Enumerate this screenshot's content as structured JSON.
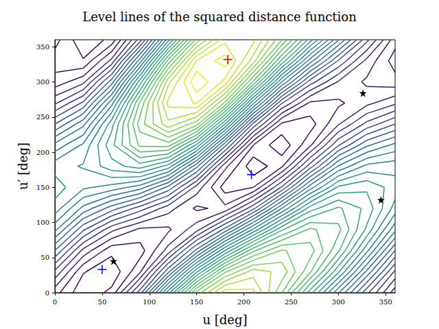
{
  "chart_data": {
    "type": "contour",
    "title": "Level lines of the squared distance function",
    "x_label": "u [deg]",
    "y_label": "u′ [deg]",
    "xlim": [
      0,
      360
    ],
    "xticks": [
      0,
      50,
      100,
      150,
      200,
      250,
      300,
      350
    ],
    "ylim": [
      0,
      360
    ],
    "yticks": [
      0,
      50,
      100,
      150,
      200,
      250,
      300,
      350
    ],
    "grid": false,
    "x": [
      0,
      30,
      60,
      90,
      120,
      150,
      180,
      210,
      240,
      270,
      300,
      330,
      360
    ],
    "y": [
      0,
      30,
      60,
      90,
      120,
      150,
      180,
      210,
      240,
      270,
      300,
      330,
      360
    ],
    "z": [
      [
        2.4,
        0.2,
        1.3,
        6.5,
        14.6,
        22.4,
        26.7,
        26.3,
        22.1,
        16.5,
        11.1,
        6.3,
        2.4
      ],
      [
        4.8,
        1.1,
        0.2,
        2.8,
        8.7,
        15.8,
        21.8,
        24.5,
        23.7,
        20.2,
        15.2,
        9.8,
        4.8
      ],
      [
        8.0,
        3.7,
        1.3,
        1.5,
        4.4,
        9.3,
        15.0,
        19.8,
        22.1,
        21.5,
        18.2,
        13.3,
        8.0
      ],
      [
        11.3,
        7.2,
        4.3,
        2.8,
        2.8,
        4.6,
        8.3,
        13.2,
        17.8,
        20.2,
        19.3,
        15.8,
        11.3
      ],
      [
        13.6,
        10.7,
        8.5,
        6.5,
        4.4,
        2.8,
        3.3,
        6.7,
        12.0,
        16.5,
        18.2,
        16.7,
        13.6
      ],
      [
        14.5,
        13.2,
        12.6,
        11.5,
        8.7,
        4.6,
        1.5,
        2.0,
        6.1,
        11.5,
        15.2,
        15.8,
        14.5
      ],
      [
        13.6,
        14.1,
        15.6,
        16.5,
        14.6,
        9.3,
        3.3,
        0.2,
        1.8,
        6.5,
        11.1,
        13.3,
        13.6
      ],
      [
        11.3,
        13.2,
        16.7,
        20.2,
        20.4,
        15.8,
        8.3,
        2.0,
        0.2,
        2.8,
        6.9,
        9.8,
        11.3
      ],
      [
        8.0,
        10.7,
        15.6,
        21.5,
        24.7,
        22.4,
        15.0,
        6.7,
        1.8,
        1.5,
        3.9,
        6.3,
        8.0
      ],
      [
        4.8,
        7.2,
        12.6,
        20.2,
        26.3,
        27.1,
        21.8,
        13.2,
        6.1,
        2.8,
        2.8,
        3.7,
        4.8
      ],
      [
        2.4,
        3.7,
        8.5,
        16.5,
        24.7,
        28.9,
        26.7,
        19.8,
        12.0,
        6.5,
        3.9,
        2.8,
        2.4
      ],
      [
        1.5,
        1.1,
        4.3,
        11.5,
        20.4,
        27.1,
        28.5,
        24.5,
        17.8,
        11.5,
        6.9,
        3.7,
        1.5
      ],
      [
        2.4,
        0.2,
        1.3,
        6.5,
        14.6,
        22.4,
        26.7,
        26.3,
        22.1,
        16.5,
        11.1,
        6.3,
        2.4
      ]
    ],
    "levels": [
      1,
      2,
      3,
      4,
      5,
      6,
      7,
      8,
      9,
      10,
      11,
      12,
      13,
      14,
      15,
      16,
      17,
      18,
      19,
      20,
      21,
      22,
      23,
      24,
      25,
      26,
      27,
      28
    ],
    "series": [
      {
        "type": "scatter",
        "marker": "plus",
        "color": "#ff0000",
        "x": [
          183
        ],
        "y": [
          332
        ]
      },
      {
        "type": "scatter",
        "marker": "plus",
        "color": "#0000ff",
        "x": [
          50,
          208
        ],
        "y": [
          33,
          168
        ]
      },
      {
        "type": "scatter",
        "marker": "star",
        "color": "#000000",
        "x": [
          62,
          326,
          345
        ],
        "y": [
          45,
          284,
          132
        ]
      }
    ]
  }
}
